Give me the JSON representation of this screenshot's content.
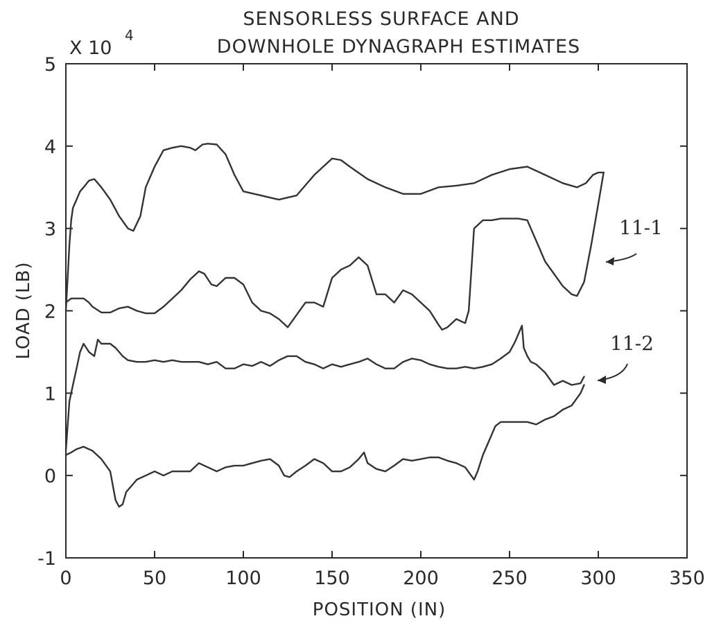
{
  "chart_data": {
    "type": "line",
    "title_lines": [
      "SENSORLESS SURFACE AND",
      "DOWNHOLE DYNAGRAPH ESTIMATES"
    ],
    "xlabel": "POSITION (IN)",
    "ylabel": "LOAD (LB)",
    "y_multiplier": {
      "base": "X 10",
      "exponent": "4"
    },
    "xlim": [
      0,
      350
    ],
    "ylim": [
      -1,
      5
    ],
    "xticks": [
      "0",
      "50",
      "100",
      "150",
      "200",
      "250",
      "300",
      "350"
    ],
    "yticks": [
      "-1",
      "0",
      "1",
      "2",
      "3",
      "4",
      "5"
    ],
    "grid": false,
    "line_color": "#333333",
    "series": [
      {
        "label": "11-1",
        "segments": [
          {
            "x": [
              0,
              1,
              2,
              3,
              4,
              6,
              8,
              10,
              13,
              16,
              20,
              25,
              30,
              35,
              38,
              42,
              45,
              50,
              55,
              60,
              65,
              70,
              73,
              77,
              80,
              85,
              90,
              95,
              100,
              110,
              120,
              130,
              140,
              150,
              155,
              160,
              170,
              180,
              190,
              200,
              210,
              220,
              230,
              240,
              250,
              260,
              270,
              280,
              288,
              293,
              297,
              300,
              303
            ],
            "y": [
              2.0,
              2.4,
              2.8,
              3.1,
              3.25,
              3.35,
              3.45,
              3.5,
              3.58,
              3.6,
              3.5,
              3.35,
              3.15,
              3.0,
              2.97,
              3.15,
              3.5,
              3.75,
              3.95,
              3.98,
              4.0,
              3.98,
              3.95,
              4.02,
              4.03,
              4.02,
              3.9,
              3.65,
              3.45,
              3.4,
              3.35,
              3.4,
              3.65,
              3.85,
              3.83,
              3.75,
              3.6,
              3.5,
              3.42,
              3.42,
              3.5,
              3.52,
              3.55,
              3.65,
              3.72,
              3.75,
              3.65,
              3.55,
              3.5,
              3.55,
              3.65,
              3.68,
              3.68
            ]
          },
          {
            "x": [
              0,
              3,
              6,
              10,
              13,
              15,
              20,
              25,
              30,
              35,
              40,
              45,
              50,
              55,
              60,
              65,
              70,
              75,
              78,
              82,
              85,
              90,
              95,
              100,
              105,
              110,
              115,
              120,
              125,
              130,
              135,
              140,
              145,
              150,
              155,
              160,
              165,
              170,
              175,
              180,
              185,
              190,
              195,
              200,
              205,
              210,
              212,
              215,
              220,
              225,
              227,
              230,
              235,
              240,
              245,
              250,
              255,
              260,
              262,
              266,
              270,
              275,
              280,
              285,
              288,
              292,
              296,
              300,
              303
            ],
            "y": [
              2.1,
              2.15,
              2.15,
              2.15,
              2.1,
              2.05,
              1.98,
              1.98,
              2.03,
              2.05,
              2.0,
              1.97,
              1.97,
              2.05,
              2.15,
              2.25,
              2.38,
              2.48,
              2.45,
              2.32,
              2.3,
              2.4,
              2.4,
              2.32,
              2.1,
              2.0,
              1.97,
              1.9,
              1.8,
              1.95,
              2.1,
              2.1,
              2.05,
              2.4,
              2.5,
              2.55,
              2.65,
              2.55,
              2.2,
              2.2,
              2.1,
              2.25,
              2.2,
              2.1,
              2.0,
              1.83,
              1.77,
              1.8,
              1.9,
              1.85,
              2.0,
              3.0,
              3.1,
              3.1,
              3.12,
              3.12,
              3.12,
              3.1,
              3.0,
              2.8,
              2.6,
              2.45,
              2.3,
              2.2,
              2.18,
              2.35,
              2.8,
              3.3,
              3.68
            ]
          }
        ]
      },
      {
        "label": "11-2",
        "segments": [
          {
            "x": [
              0,
              2,
              4,
              6,
              8,
              10,
              13,
              16,
              18,
              20,
              22,
              25,
              28,
              30,
              32,
              35,
              40,
              45,
              50,
              55,
              60,
              65,
              70,
              75,
              80,
              85,
              90,
              95,
              100,
              105,
              110,
              115,
              120,
              125,
              130,
              135,
              140,
              145,
              150,
              155,
              160,
              165,
              170,
              175,
              180,
              185,
              190,
              195,
              200,
              205,
              210,
              215,
              220,
              225,
              230,
              235,
              240,
              245,
              250,
              253,
              255,
              257,
              258,
              260,
              262,
              265,
              270,
              275,
              280,
              285,
              290,
              292
            ],
            "y": [
              0.3,
              0.9,
              1.1,
              1.3,
              1.5,
              1.6,
              1.5,
              1.45,
              1.65,
              1.6,
              1.6,
              1.6,
              1.55,
              1.5,
              1.45,
              1.4,
              1.38,
              1.38,
              1.4,
              1.38,
              1.4,
              1.38,
              1.38,
              1.38,
              1.35,
              1.38,
              1.3,
              1.3,
              1.35,
              1.33,
              1.38,
              1.33,
              1.4,
              1.45,
              1.45,
              1.38,
              1.35,
              1.3,
              1.35,
              1.32,
              1.35,
              1.38,
              1.42,
              1.35,
              1.3,
              1.3,
              1.38,
              1.42,
              1.4,
              1.35,
              1.32,
              1.3,
              1.3,
              1.32,
              1.3,
              1.32,
              1.35,
              1.42,
              1.5,
              1.62,
              1.72,
              1.82,
              1.55,
              1.45,
              1.38,
              1.35,
              1.25,
              1.1,
              1.15,
              1.1,
              1.12,
              1.2
            ]
          },
          {
            "x": [
              0,
              3,
              6,
              10,
              15,
              20,
              25,
              28,
              30,
              32,
              34,
              36,
              40,
              45,
              50,
              55,
              60,
              65,
              70,
              75,
              80,
              85,
              90,
              95,
              100,
              105,
              110,
              115,
              120,
              123,
              126,
              130,
              135,
              140,
              145,
              150,
              155,
              160,
              165,
              168,
              170,
              175,
              180,
              185,
              190,
              195,
              200,
              205,
              210,
              215,
              220,
              225,
              230,
              232,
              235,
              238,
              240,
              242,
              245,
              250,
              255,
              260,
              265,
              270,
              275,
              280,
              285,
              290,
              292
            ],
            "y": [
              0.25,
              0.28,
              0.32,
              0.35,
              0.3,
              0.2,
              0.05,
              -0.3,
              -0.38,
              -0.35,
              -0.2,
              -0.15,
              -0.05,
              0.0,
              0.05,
              0.0,
              0.05,
              0.05,
              0.05,
              0.15,
              0.1,
              0.05,
              0.1,
              0.12,
              0.12,
              0.15,
              0.18,
              0.2,
              0.12,
              0.0,
              -0.02,
              0.05,
              0.12,
              0.2,
              0.15,
              0.05,
              0.05,
              0.1,
              0.2,
              0.28,
              0.15,
              0.08,
              0.05,
              0.12,
              0.2,
              0.18,
              0.2,
              0.22,
              0.22,
              0.18,
              0.15,
              0.1,
              -0.05,
              0.05,
              0.25,
              0.4,
              0.5,
              0.6,
              0.65,
              0.65,
              0.65,
              0.65,
              0.62,
              0.68,
              0.72,
              0.8,
              0.85,
              1.0,
              1.1
            ]
          }
        ]
      }
    ],
    "annotations": [
      {
        "label": "11-1",
        "points_to": "11-1"
      },
      {
        "label": "11-2",
        "points_to": "11-2"
      }
    ]
  }
}
